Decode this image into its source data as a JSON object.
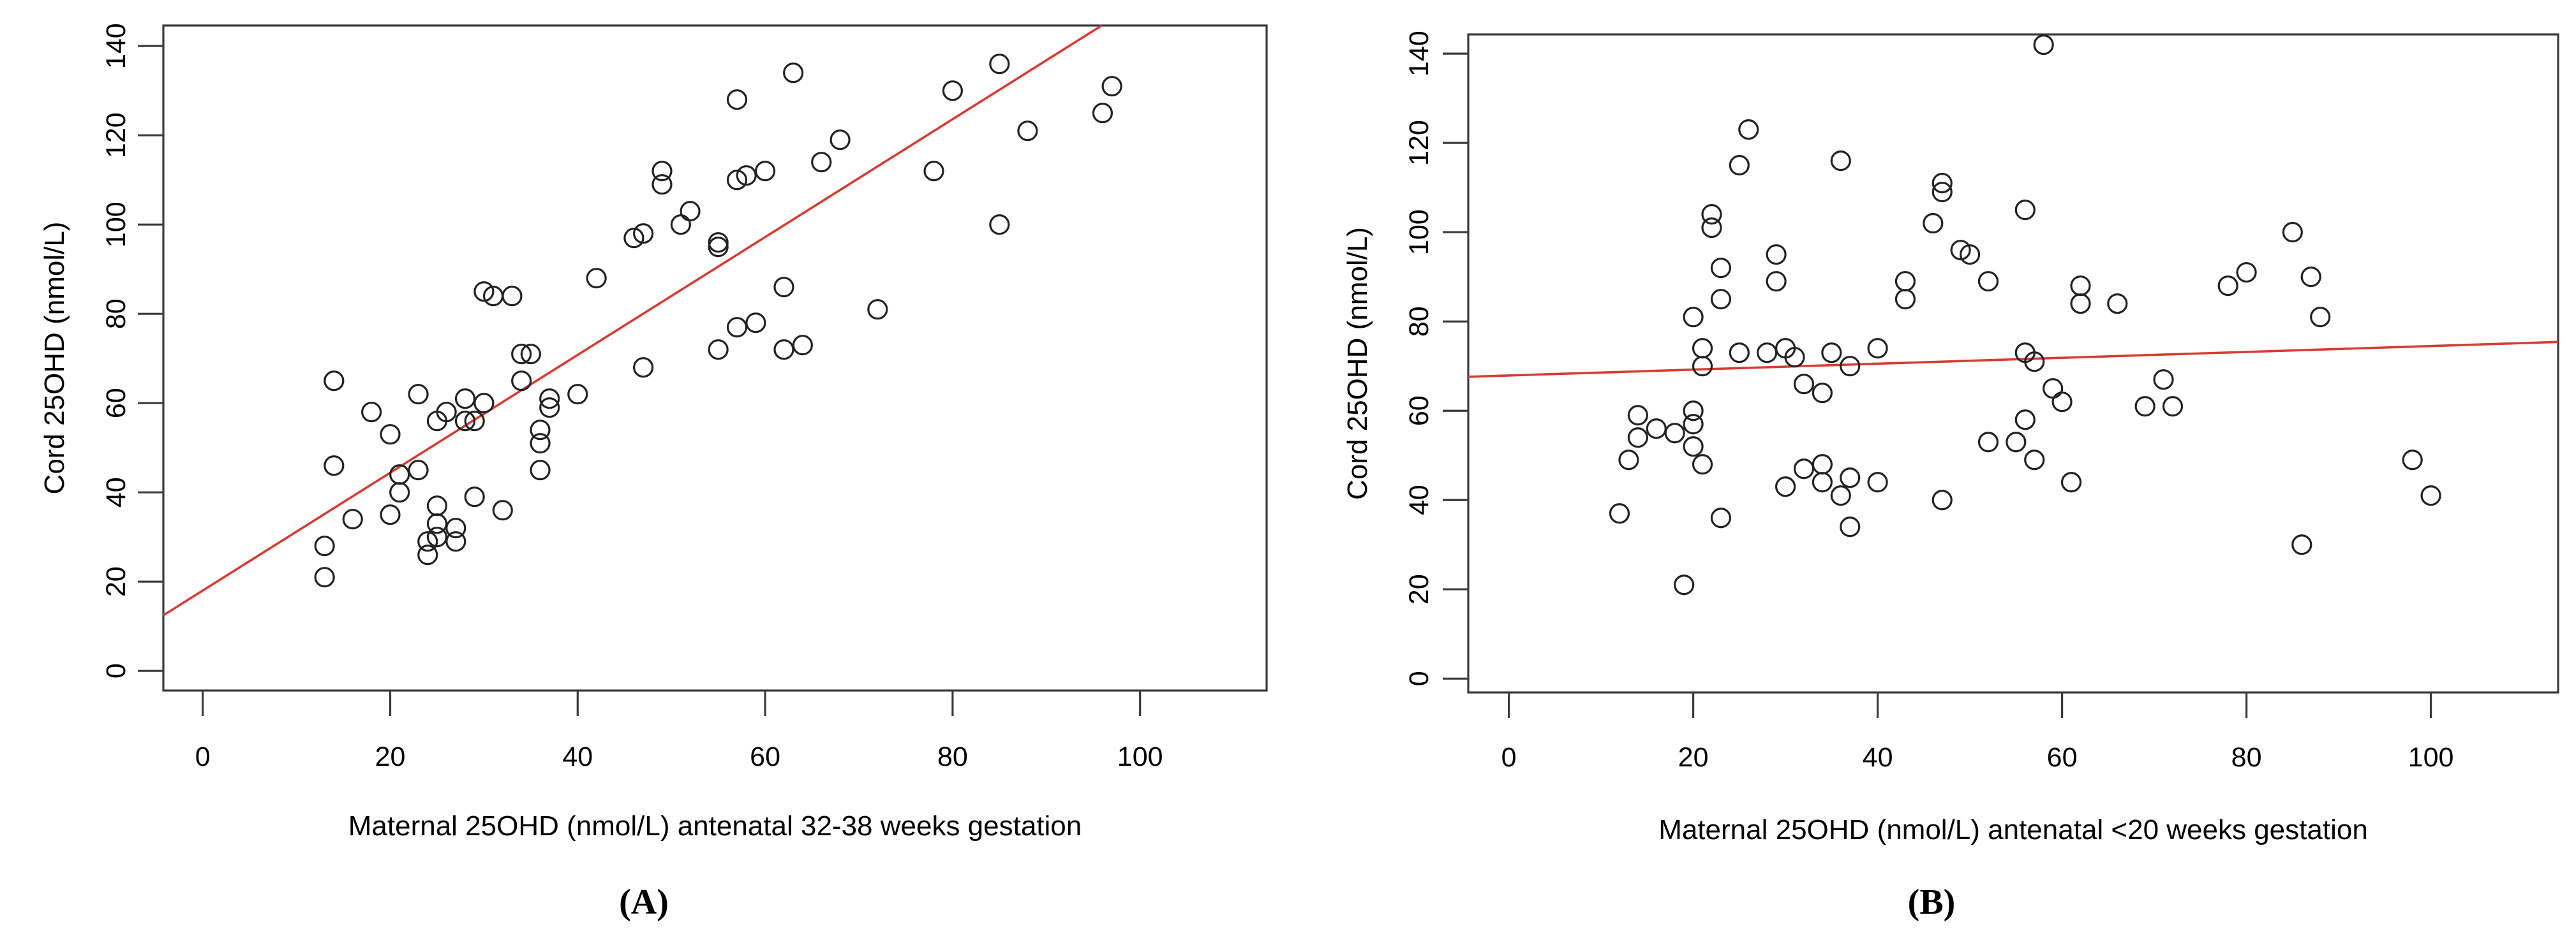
{
  "figure": {
    "background": "#ffffff"
  },
  "chart_data": [
    {
      "type": "scatter",
      "panel_label": "(A)",
      "xlabel": "Maternal 25OHD (nmol/L) antenatal 32-38 weeks gestation",
      "ylabel": "Cord 25OHD (nmol/L)",
      "x_ticks": [
        0,
        20,
        40,
        60,
        80,
        100
      ],
      "y_ticks": [
        0,
        20,
        40,
        60,
        80,
        100,
        120,
        140
      ],
      "xlim": [
        -4.2,
        113.5
      ],
      "ylim": [
        -4.4,
        144.6
      ],
      "grid": "off",
      "legend": "none",
      "point_color": "#222222",
      "line_color": "#d63c34",
      "axis_color": "#3a3a3a",
      "regression": {
        "intercept": 18.0,
        "slope": 1.32
      },
      "points": [
        [
          13,
          21
        ],
        [
          13,
          28
        ],
        [
          14,
          46
        ],
        [
          14,
          65
        ],
        [
          16,
          34
        ],
        [
          18,
          58
        ],
        [
          20,
          53
        ],
        [
          20,
          35
        ],
        [
          21,
          44
        ],
        [
          21,
          40
        ],
        [
          23,
          62
        ],
        [
          23,
          45
        ],
        [
          24,
          29
        ],
        [
          24,
          26
        ],
        [
          25,
          56
        ],
        [
          25,
          37
        ],
        [
          25,
          33
        ],
        [
          25,
          30
        ],
        [
          26,
          58
        ],
        [
          27,
          32
        ],
        [
          27,
          29
        ],
        [
          28,
          61
        ],
        [
          28,
          56
        ],
        [
          29,
          56
        ],
        [
          29,
          39
        ],
        [
          30,
          60
        ],
        [
          30,
          85
        ],
        [
          31,
          84
        ],
        [
          32,
          36
        ],
        [
          33,
          84
        ],
        [
          34,
          71
        ],
        [
          35,
          71
        ],
        [
          34,
          65
        ],
        [
          36,
          54
        ],
        [
          36,
          51
        ],
        [
          36,
          45
        ],
        [
          37,
          61
        ],
        [
          37,
          59
        ],
        [
          40,
          62
        ],
        [
          42,
          88
        ],
        [
          46,
          97
        ],
        [
          47,
          98
        ],
        [
          47,
          68
        ],
        [
          49,
          112
        ],
        [
          49,
          109
        ],
        [
          51,
          100
        ],
        [
          52,
          103
        ],
        [
          55,
          96
        ],
        [
          55,
          95
        ],
        [
          55,
          72
        ],
        [
          57,
          128
        ],
        [
          57,
          110
        ],
        [
          57,
          77
        ],
        [
          58,
          111
        ],
        [
          59,
          78
        ],
        [
          60,
          112
        ],
        [
          62,
          86
        ],
        [
          62,
          72
        ],
        [
          63,
          134
        ],
        [
          64,
          73
        ],
        [
          66,
          114
        ],
        [
          68,
          119
        ],
        [
          72,
          81
        ],
        [
          78,
          112
        ],
        [
          80,
          130
        ],
        [
          85,
          136
        ],
        [
          85,
          100
        ],
        [
          88,
          121
        ],
        [
          96,
          125
        ],
        [
          97,
          131
        ]
      ]
    },
    {
      "type": "scatter",
      "panel_label": "(B)",
      "xlabel": "Maternal 25OHD (nmol/L) antenatal <20 weeks gestation",
      "ylabel": "Cord 25OHD (nmol/L)",
      "x_ticks": [
        0,
        20,
        40,
        60,
        80,
        100
      ],
      "y_ticks": [
        0,
        20,
        40,
        60,
        80,
        100,
        120,
        140
      ],
      "xlim": [
        -4.4,
        113.8
      ],
      "ylim": [
        -3.1,
        144.3
      ],
      "grid": "off",
      "legend": "none",
      "point_color": "#222222",
      "line_color": "#d63c34",
      "axis_color": "#3a3a3a",
      "regression": {
        "intercept": 67.9,
        "slope": 0.066
      },
      "points": [
        [
          58,
          142
        ],
        [
          26,
          123
        ],
        [
          25,
          115
        ],
        [
          36,
          116
        ],
        [
          47,
          111
        ],
        [
          47,
          109
        ],
        [
          56,
          105
        ],
        [
          46,
          102
        ],
        [
          22,
          104
        ],
        [
          22,
          101
        ],
        [
          85,
          100
        ],
        [
          49,
          96
        ],
        [
          50,
          95
        ],
        [
          29,
          95
        ],
        [
          23,
          92
        ],
        [
          43,
          89
        ],
        [
          43,
          85
        ],
        [
          29,
          89
        ],
        [
          23,
          85
        ],
        [
          52,
          89
        ],
        [
          20,
          81
        ],
        [
          80,
          91
        ],
        [
          87,
          90
        ],
        [
          78,
          88
        ],
        [
          62,
          88
        ],
        [
          62,
          84
        ],
        [
          66,
          84
        ],
        [
          88,
          81
        ],
        [
          21,
          74
        ],
        [
          21,
          70
        ],
        [
          25,
          73
        ],
        [
          28,
          73
        ],
        [
          30,
          74
        ],
        [
          31,
          72
        ],
        [
          35,
          73
        ],
        [
          37,
          70
        ],
        [
          40,
          74
        ],
        [
          56,
          73
        ],
        [
          57,
          71
        ],
        [
          71,
          67
        ],
        [
          69,
          61
        ],
        [
          72,
          61
        ],
        [
          59,
          65
        ],
        [
          60,
          62
        ],
        [
          32,
          66
        ],
        [
          34,
          64
        ],
        [
          14,
          59
        ],
        [
          16,
          56
        ],
        [
          14,
          54
        ],
        [
          20,
          60
        ],
        [
          20,
          57
        ],
        [
          18,
          55
        ],
        [
          20,
          52
        ],
        [
          21,
          48
        ],
        [
          13,
          49
        ],
        [
          56,
          58
        ],
        [
          23,
          36
        ],
        [
          30,
          43
        ],
        [
          32,
          47
        ],
        [
          34,
          48
        ],
        [
          34,
          44
        ],
        [
          36,
          41
        ],
        [
          37,
          45
        ],
        [
          40,
          44
        ],
        [
          37,
          34
        ],
        [
          47,
          40
        ],
        [
          52,
          53
        ],
        [
          55,
          53
        ],
        [
          57,
          49
        ],
        [
          61,
          44
        ],
        [
          12,
          37
        ],
        [
          19,
          21
        ],
        [
          86,
          30
        ],
        [
          98,
          49
        ],
        [
          100,
          41
        ]
      ]
    }
  ]
}
